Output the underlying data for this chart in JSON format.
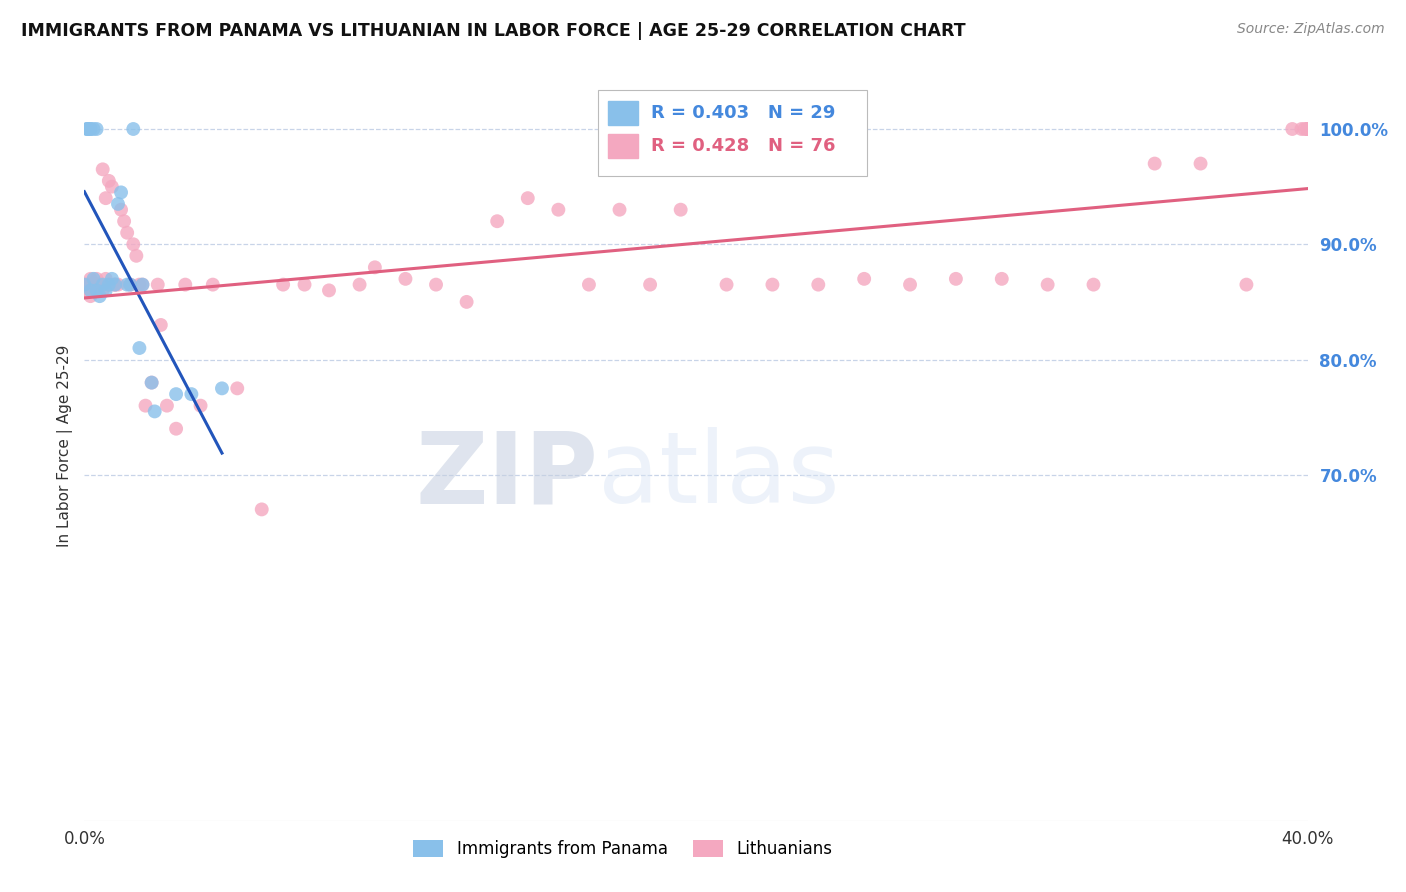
{
  "title": "IMMIGRANTS FROM PANAMA VS LITHUANIAN IN LABOR FORCE | AGE 25-29 CORRELATION CHART",
  "source": "Source: ZipAtlas.com",
  "ylabel": "In Labor Force | Age 25-29",
  "watermark_zip": "ZIP",
  "watermark_atlas": "atlas",
  "legend_blue_text": "R = 0.403   N = 29",
  "legend_pink_text": "R = 0.428   N = 76",
  "legend_blue_label": "Immigrants from Panama",
  "legend_pink_label": "Lithuanians",
  "xlim": [
    0.0,
    0.4
  ],
  "ylim": [
    0.4,
    1.05
  ],
  "x_ticks": [
    0.0,
    0.1,
    0.2,
    0.3,
    0.4
  ],
  "x_tick_labels": [
    "0.0%",
    "",
    "",
    "",
    "40.0%"
  ],
  "y_ticks_right": [
    0.7,
    0.8,
    0.9,
    1.0
  ],
  "y_tick_labels_right": [
    "70.0%",
    "80.0%",
    "90.0%",
    "100.0%"
  ],
  "blue_color": "#89c0ea",
  "pink_color": "#f4a8c0",
  "blue_line_color": "#2255bb",
  "pink_line_color": "#e06080",
  "right_axis_color": "#4488dd",
  "grid_color": "#c8d4e8",
  "background_color": "#ffffff",
  "panama_x": [
    0.0,
    0.001,
    0.001,
    0.001,
    0.002,
    0.002,
    0.002,
    0.003,
    0.003,
    0.004,
    0.004,
    0.005,
    0.006,
    0.007,
    0.008,
    0.009,
    0.01,
    0.011,
    0.012,
    0.014,
    0.015,
    0.016,
    0.018,
    0.019,
    0.022,
    0.023,
    0.03,
    0.035,
    0.045
  ],
  "panama_y": [
    0.865,
    1.0,
    1.0,
    1.0,
    1.0,
    0.86,
    1.0,
    0.87,
    1.0,
    0.86,
    1.0,
    0.855,
    0.865,
    0.86,
    0.865,
    0.87,
    0.865,
    0.935,
    0.945,
    0.865,
    0.865,
    1.0,
    0.81,
    0.865,
    0.78,
    0.755,
    0.77,
    0.77,
    0.775
  ],
  "lithuanian_x": [
    0.0,
    0.001,
    0.001,
    0.002,
    0.002,
    0.002,
    0.003,
    0.003,
    0.003,
    0.004,
    0.004,
    0.005,
    0.005,
    0.006,
    0.006,
    0.007,
    0.007,
    0.008,
    0.008,
    0.009,
    0.01,
    0.01,
    0.011,
    0.012,
    0.013,
    0.014,
    0.015,
    0.016,
    0.017,
    0.018,
    0.019,
    0.02,
    0.022,
    0.024,
    0.025,
    0.027,
    0.03,
    0.033,
    0.038,
    0.042,
    0.05,
    0.058,
    0.065,
    0.072,
    0.08,
    0.09,
    0.095,
    0.105,
    0.115,
    0.125,
    0.135,
    0.145,
    0.155,
    0.165,
    0.175,
    0.185,
    0.195,
    0.21,
    0.225,
    0.24,
    0.255,
    0.27,
    0.285,
    0.3,
    0.315,
    0.33,
    0.35,
    0.365,
    0.38,
    0.395,
    0.398,
    0.399,
    0.4,
    0.4,
    0.4,
    0.4
  ],
  "lithuanian_y": [
    0.865,
    0.86,
    0.865,
    0.855,
    0.87,
    0.865,
    0.865,
    0.86,
    0.865,
    0.865,
    0.87,
    0.865,
    0.865,
    0.86,
    0.965,
    0.87,
    0.94,
    0.955,
    0.865,
    0.95,
    0.865,
    0.865,
    0.865,
    0.93,
    0.92,
    0.91,
    0.865,
    0.9,
    0.89,
    0.865,
    0.865,
    0.76,
    0.78,
    0.865,
    0.83,
    0.76,
    0.74,
    0.865,
    0.76,
    0.865,
    0.775,
    0.67,
    0.865,
    0.865,
    0.86,
    0.865,
    0.88,
    0.87,
    0.865,
    0.85,
    0.92,
    0.94,
    0.93,
    0.865,
    0.93,
    0.865,
    0.93,
    0.865,
    0.865,
    0.865,
    0.87,
    0.865,
    0.87,
    0.87,
    0.865,
    0.865,
    0.97,
    0.97,
    0.865,
    1.0,
    1.0,
    1.0,
    1.0,
    1.0,
    1.0,
    1.0
  ]
}
